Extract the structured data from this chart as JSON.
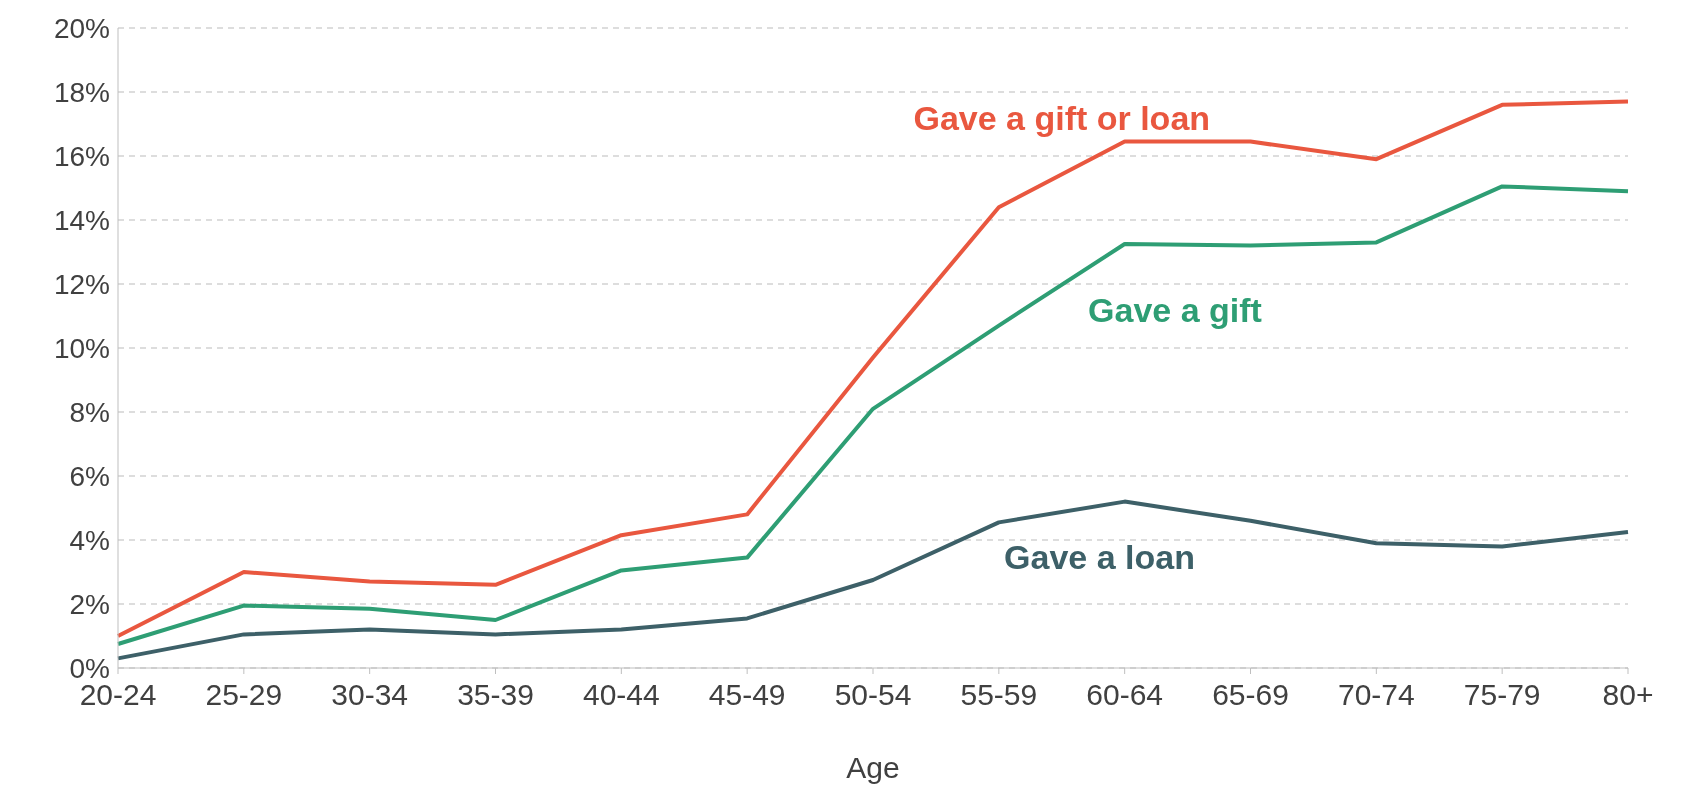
{
  "chart_data": {
    "type": "line",
    "xlabel": "Age",
    "categories": [
      "20-24",
      "25-29",
      "30-34",
      "35-39",
      "40-44",
      "45-49",
      "50-54",
      "55-59",
      "60-64",
      "65-69",
      "70-74",
      "75-79",
      "80+"
    ],
    "series": [
      {
        "name": "Gave a gift or loan",
        "color": "#e9573f",
        "values": [
          1.0,
          3.0,
          2.7,
          2.6,
          4.15,
          4.8,
          9.7,
          14.4,
          16.45,
          16.45,
          15.9,
          17.6,
          17.7
        ]
      },
      {
        "name": "Gave a gift",
        "color": "#2e9e74",
        "values": [
          0.75,
          1.95,
          1.85,
          1.5,
          3.05,
          3.45,
          8.1,
          10.7,
          13.25,
          13.2,
          13.3,
          15.05,
          14.9
        ]
      },
      {
        "name": "Gave a loan",
        "color": "#3d6068",
        "values": [
          0.3,
          1.05,
          1.2,
          1.05,
          1.2,
          1.55,
          2.75,
          4.55,
          5.2,
          4.6,
          3.9,
          3.8,
          4.25
        ]
      }
    ],
    "ylim": [
      0,
      20
    ],
    "yticks": [
      {
        "value": 0,
        "label": "0%"
      },
      {
        "value": 2,
        "label": "2%"
      },
      {
        "value": 4,
        "label": "4%"
      },
      {
        "value": 6,
        "label": "6%"
      },
      {
        "value": 8,
        "label": "8%"
      },
      {
        "value": 10,
        "label": "10%"
      },
      {
        "value": 12,
        "label": "12%"
      },
      {
        "value": 14,
        "label": "14%"
      },
      {
        "value": 16,
        "label": "16%"
      },
      {
        "value": 18,
        "label": "18%"
      },
      {
        "value": 20,
        "label": "20%"
      }
    ],
    "grid": "y",
    "marker": "none",
    "line_style": "solid"
  }
}
